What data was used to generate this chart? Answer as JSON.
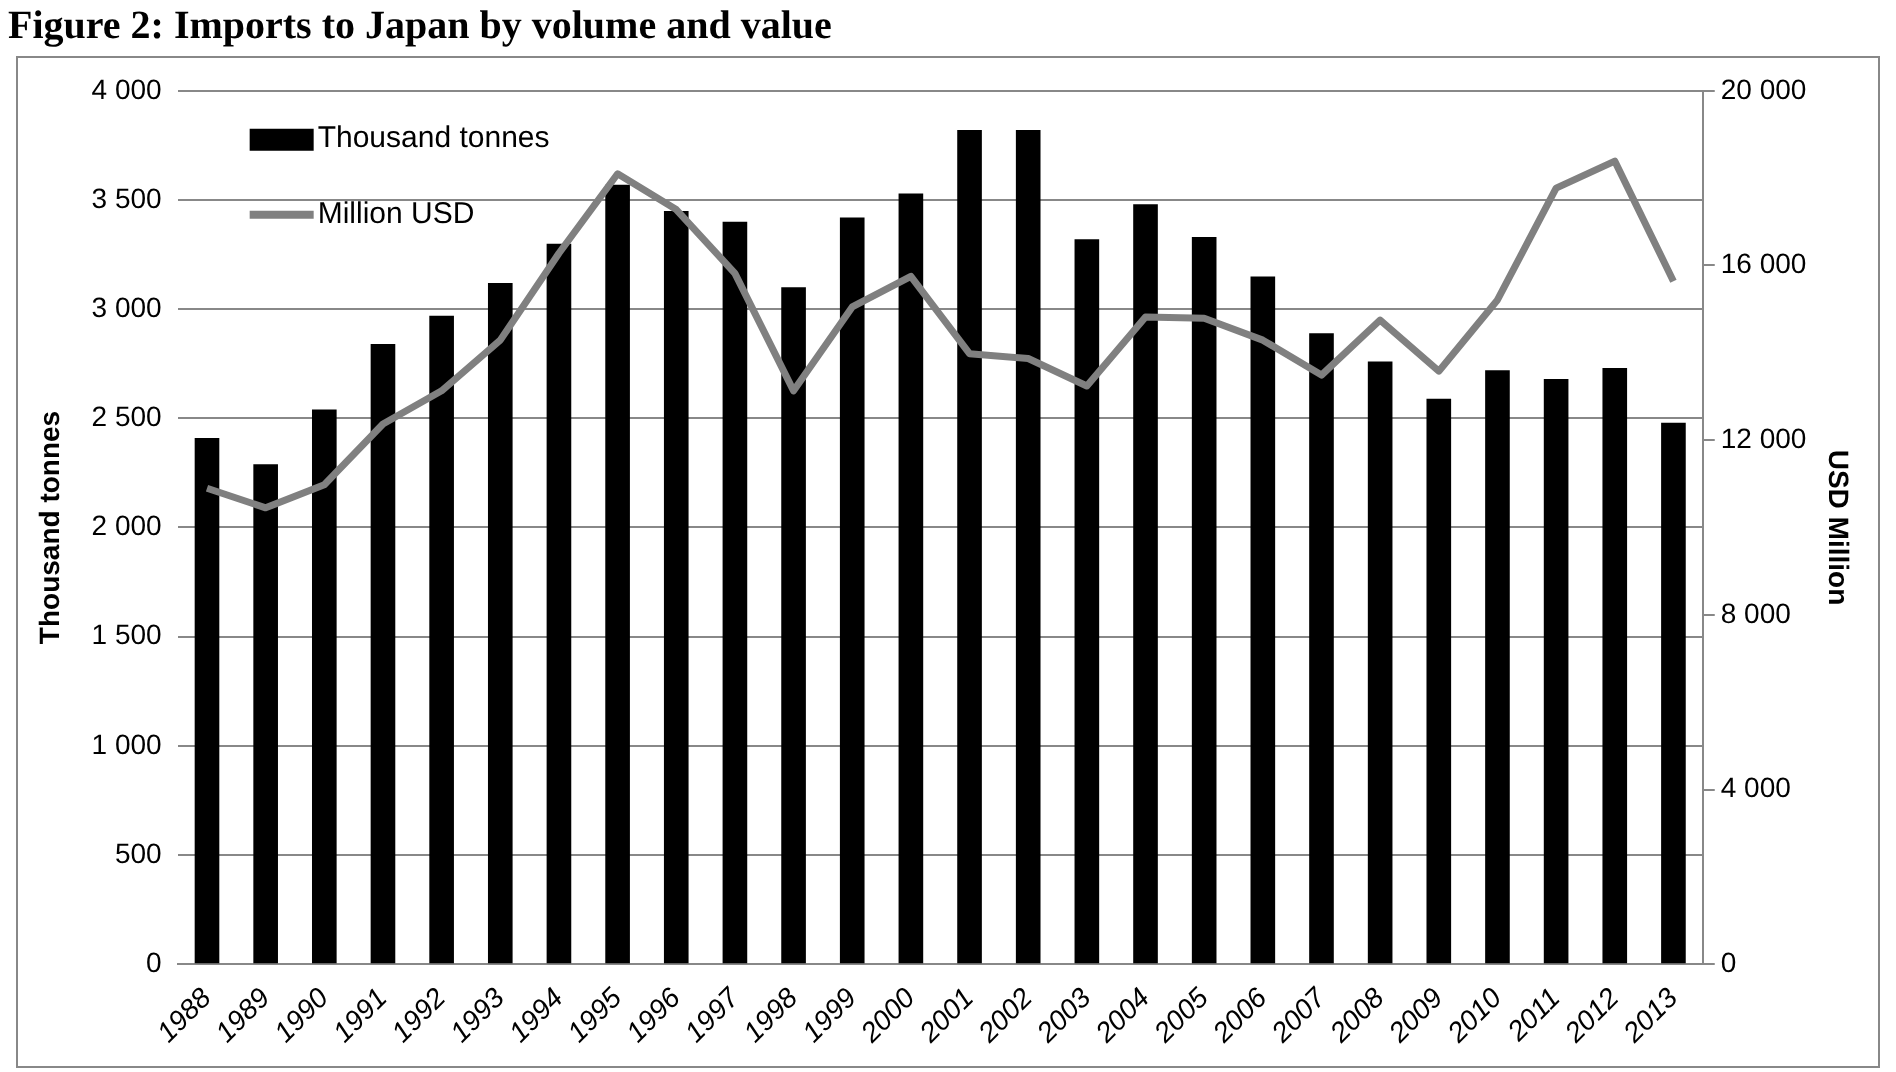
{
  "chart_data": {
    "type": "bar",
    "title": "Figure 2: Imports to Japan by volume and value",
    "ylabel": "Thousand tonnes",
    "y2label": "USD Million",
    "categories": [
      "1988",
      "1989",
      "1990",
      "1991",
      "1992",
      "1993",
      "1994",
      "1995",
      "1996",
      "1997",
      "1998",
      "1999",
      "2000",
      "2001",
      "2002",
      "2003",
      "2004",
      "2005",
      "2006",
      "2007",
      "2008",
      "2009",
      "2010",
      "2011",
      "2012",
      "2013"
    ],
    "series": [
      {
        "name": "Thousand tonnes",
        "color": "#000000",
        "values": [
          2410,
          2290,
          2540,
          2840,
          2970,
          3120,
          3300,
          3570,
          3450,
          3400,
          3100,
          3420,
          3530,
          3820,
          3820,
          3320,
          3480,
          3330,
          3150,
          2890,
          2760,
          2590,
          2720,
          2680,
          2730,
          2480
        ]
      },
      {
        "name": "Million USD",
        "type": "line",
        "axis": "y2",
        "color": "#808080",
        "values": [
          10900,
          10450,
          10980,
          12370,
          13130,
          14290,
          16280,
          18100,
          17280,
          15820,
          13130,
          15050,
          15750,
          13980,
          13870,
          13240,
          14820,
          14790,
          14290,
          13490,
          14750,
          13580,
          15210,
          17770,
          18390,
          15640
        ]
      }
    ],
    "ylim": [
      0,
      4000
    ],
    "yticks": [
      0,
      500,
      {
        "value": 1000,
        "label": "1 000"
      },
      {
        "value": 1500,
        "label": "1 500"
      },
      {
        "value": 2000,
        "label": "2 000"
      },
      {
        "value": 2500,
        "label": "2 500"
      },
      {
        "value": 3000,
        "label": "3 000"
      },
      {
        "value": 3500,
        "label": "3 500"
      },
      {
        "value": 4000,
        "label": "4 000"
      }
    ],
    "y2lim": [
      0,
      20000
    ],
    "y2ticks": [
      0,
      {
        "value": 4000,
        "label": "4 000"
      },
      {
        "value": 8000,
        "label": "8 000"
      },
      {
        "value": 12000,
        "label": "12 000"
      },
      {
        "value": 16000,
        "label": "16 000"
      },
      {
        "value": 20000,
        "label": "20 000"
      }
    ],
    "grid": "y",
    "legend": "top left",
    "marker": "none"
  }
}
